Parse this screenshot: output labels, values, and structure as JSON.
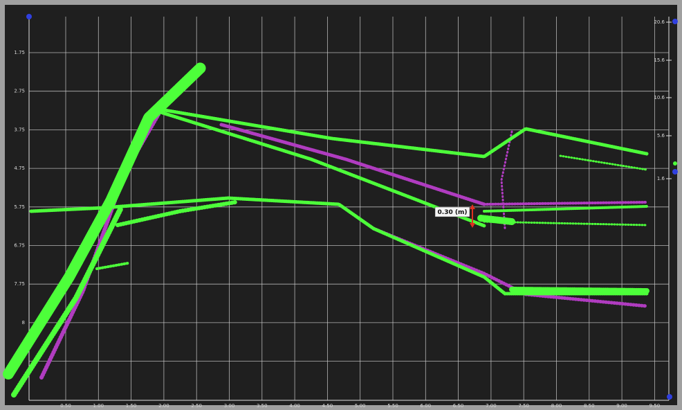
{
  "viewer": {
    "x_labels": [
      "0.50",
      "1.00",
      "1.50",
      "2.00",
      "2.50",
      "3.00",
      "3.50",
      "4.00",
      "4.50",
      "5.00",
      "5.50",
      "6.00",
      "6.50",
      "7.00",
      "7.50",
      "8.00",
      "8.50",
      "9.00",
      "9.50"
    ],
    "y_labels": [
      "1.75",
      "2.75",
      "3.75",
      "4.75",
      "5.75",
      "6.75",
      "7.75",
      "8"
    ],
    "y2_labels": [
      "20.6",
      "15.6",
      "10.6",
      "5.6",
      "1.6"
    ],
    "annotation": "0.30 (m)"
  }
}
